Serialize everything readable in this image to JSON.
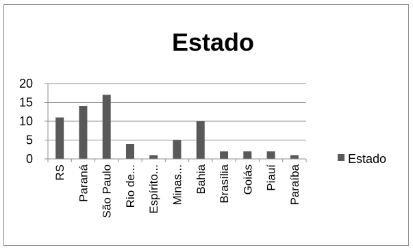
{
  "chart_data": {
    "type": "bar",
    "title": "Estado",
    "categories": [
      "RS",
      "Paraná",
      "São Paulo",
      "Rio de...",
      "Espírito...",
      "Minas...",
      "Bahia",
      "Brasília",
      "Goiás",
      "Piauí",
      "Paraíba"
    ],
    "series": [
      {
        "name": "Estado",
        "values": [
          11,
          14,
          17,
          4,
          1,
          5,
          10,
          2,
          2,
          2,
          1
        ],
        "color": "#595959"
      }
    ],
    "yticks": [
      "0",
      "5",
      "10",
      "15",
      "20"
    ],
    "ylim": [
      0,
      20
    ],
    "grid": true,
    "legend_position": "right"
  }
}
